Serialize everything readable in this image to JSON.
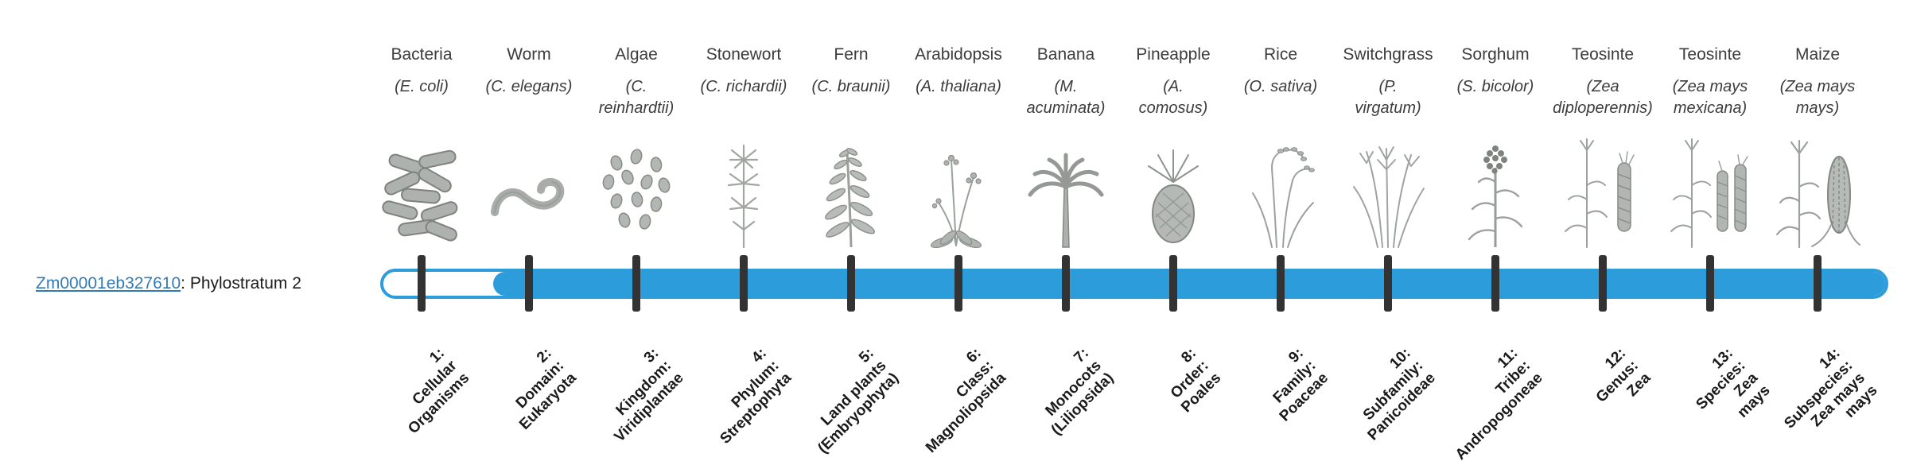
{
  "gene": {
    "id": "Zm00001eb327610",
    "suffix": ": Phylostratum 2",
    "phylostratum": 2
  },
  "colors": {
    "bar": "#2D9CDB",
    "tick": "#333333",
    "link": "#337ab7"
  },
  "strata": [
    {
      "organism": "Bacteria",
      "species_lines": [
        "(E. coli)"
      ],
      "label_lines": [
        "1:",
        "Cellular",
        "Organisms"
      ],
      "icon": "bacteria"
    },
    {
      "organism": "Worm",
      "species_lines": [
        "(C. elegans)"
      ],
      "label_lines": [
        "2:",
        "Domain:",
        "Eukaryota"
      ],
      "icon": "worm"
    },
    {
      "organism": "Algae",
      "species_lines": [
        "(C.",
        "reinhardtii)"
      ],
      "label_lines": [
        "3:",
        "Kingdom:",
        "Viridiplantae"
      ],
      "icon": "algae"
    },
    {
      "organism": "Stonewort",
      "species_lines": [
        "(C. richardii)"
      ],
      "label_lines": [
        "4:",
        "Phylum:",
        "Streptophyta"
      ],
      "icon": "stonewort"
    },
    {
      "organism": "Fern",
      "species_lines": [
        "(C. braunii)"
      ],
      "label_lines": [
        "5:",
        "Land plants",
        "(Embryophyta)"
      ],
      "icon": "fern"
    },
    {
      "organism": "Arabidopsis",
      "species_lines": [
        "(A. thaliana)"
      ],
      "label_lines": [
        "6:",
        "Class:",
        "Magnoliopsida"
      ],
      "icon": "arabidopsis"
    },
    {
      "organism": "Banana",
      "species_lines": [
        "(M.",
        "acuminata)"
      ],
      "label_lines": [
        "7:",
        "Monocots",
        "(Liliopsida)"
      ],
      "icon": "banana"
    },
    {
      "organism": "Pineapple",
      "species_lines": [
        "(A.",
        "comosus)"
      ],
      "label_lines": [
        "8:",
        "Order:",
        "Poales"
      ],
      "icon": "pineapple"
    },
    {
      "organism": "Rice",
      "species_lines": [
        "(O. sativa)"
      ],
      "label_lines": [
        "9:",
        "Family:",
        "Poaceae"
      ],
      "icon": "rice"
    },
    {
      "organism": "Switchgrass",
      "species_lines": [
        "(P.",
        "virgatum)"
      ],
      "label_lines": [
        "10:",
        "Subfamily:",
        "Panicoideae"
      ],
      "icon": "switchgrass"
    },
    {
      "organism": "Sorghum",
      "species_lines": [
        "(S. bicolor)"
      ],
      "label_lines": [
        "11:",
        "Tribe:",
        "Andropogoneae"
      ],
      "icon": "sorghum"
    },
    {
      "organism": "Teosinte",
      "species_lines": [
        "(Zea",
        "diploperennis)"
      ],
      "label_lines": [
        "12:",
        "Genus:",
        "Zea"
      ],
      "icon": "teosinte"
    },
    {
      "organism": "Teosinte",
      "species_lines": [
        "(Zea mays",
        "mexicana)"
      ],
      "label_lines": [
        "13:",
        "Species:",
        "Zea",
        "mays"
      ],
      "icon": "teosinte2"
    },
    {
      "organism": "Maize",
      "species_lines": [
        "(Zea mays",
        "mays)"
      ],
      "label_lines": [
        "14:",
        "Subspecies:",
        "Zea mays",
        "mays"
      ],
      "icon": "maize"
    }
  ]
}
